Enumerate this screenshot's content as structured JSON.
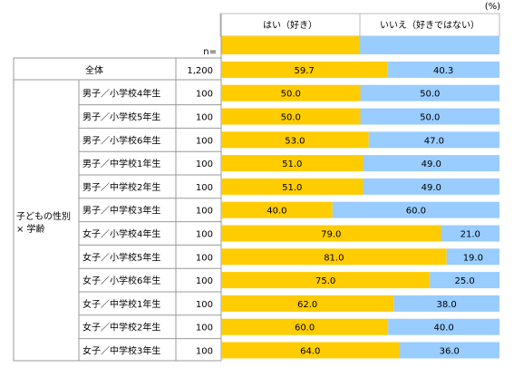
{
  "unit_note": "(%)",
  "n_header": "n=",
  "legend": [
    {
      "label": "はい（好き）",
      "color": "#ffcc00"
    },
    {
      "label": "いいえ（好きではない）",
      "color": "#99ccff"
    }
  ],
  "group_label_line1": "子どもの性別",
  "group_label_line2": "× 学齢",
  "chart_data": {
    "type": "bar",
    "stacked": true,
    "orientation": "horizontal",
    "unit": "%",
    "xlim": [
      0,
      100
    ],
    "series": [
      {
        "name": "はい（好き）",
        "color": "#ffcc00"
      },
      {
        "name": "いいえ（好きではない）",
        "color": "#99ccff"
      }
    ],
    "rows": [
      {
        "label": "全体",
        "n": "1,200",
        "yes": 59.7,
        "no": 40.3,
        "total": true
      },
      {
        "label": "男子／小学校4年生",
        "n": "100",
        "yes": 50.0,
        "no": 50.0
      },
      {
        "label": "男子／小学校5年生",
        "n": "100",
        "yes": 50.0,
        "no": 50.0
      },
      {
        "label": "男子／小学校6年生",
        "n": "100",
        "yes": 53.0,
        "no": 47.0
      },
      {
        "label": "男子／中学校1年生",
        "n": "100",
        "yes": 51.0,
        "no": 49.0
      },
      {
        "label": "男子／中学校2年生",
        "n": "100",
        "yes": 51.0,
        "no": 49.0
      },
      {
        "label": "男子／中学校3年生",
        "n": "100",
        "yes": 40.0,
        "no": 60.0
      },
      {
        "label": "女子／小学校4年生",
        "n": "100",
        "yes": 79.0,
        "no": 21.0
      },
      {
        "label": "女子／小学校5年生",
        "n": "100",
        "yes": 81.0,
        "no": 19.0
      },
      {
        "label": "女子／小学校6年生",
        "n": "100",
        "yes": 75.0,
        "no": 25.0
      },
      {
        "label": "女子／中学校1年生",
        "n": "100",
        "yes": 62.0,
        "no": 38.0
      },
      {
        "label": "女子／中学校2年生",
        "n": "100",
        "yes": 60.0,
        "no": 40.0
      },
      {
        "label": "女子／中学校3年生",
        "n": "100",
        "yes": 64.0,
        "no": 36.0
      }
    ]
  }
}
